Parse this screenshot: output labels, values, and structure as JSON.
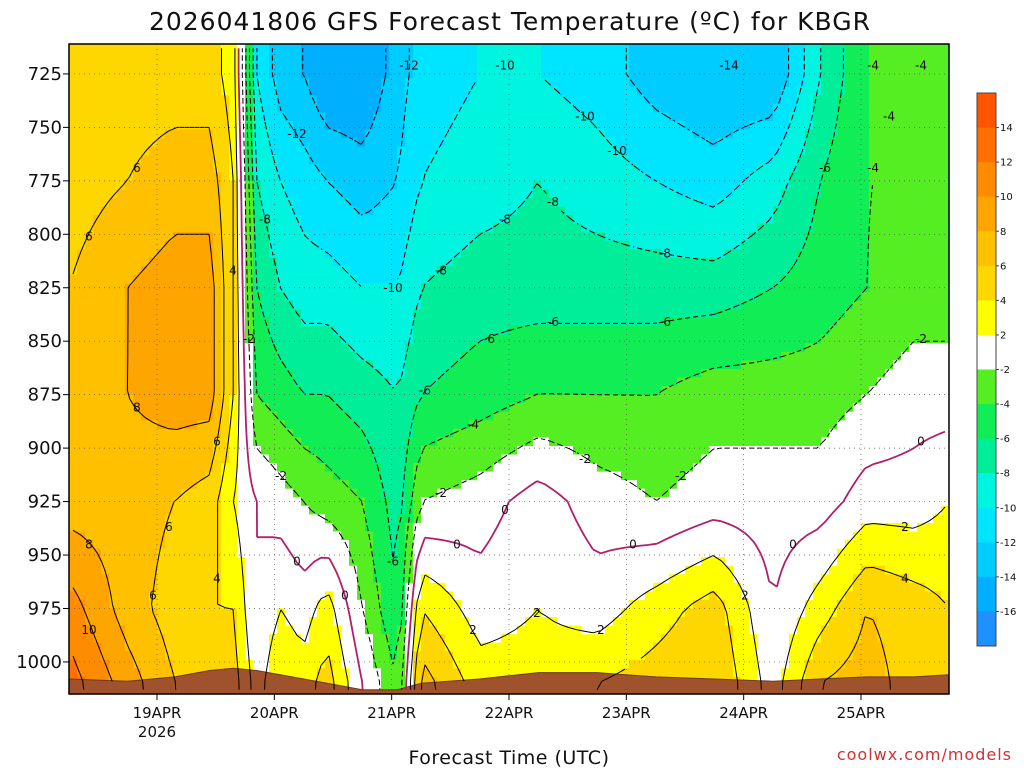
{
  "chart_data": {
    "type": "heatmap",
    "title": "2026041806 GFS Forecast Temperature (ºC) for KBGR",
    "xlabel": "Forecast Time (UTC)",
    "ylabel": "",
    "credit": "coolwx.com/models",
    "x_ticks": [
      "19APR",
      "20APR",
      "21APR",
      "22APR",
      "23APR",
      "24APR",
      "25APR"
    ],
    "x_tick_sublabel": "2026",
    "x_range": [
      "2026-04-18T06",
      "2026-04-25T18"
    ],
    "y_axis": "pressure (hPa), inverted",
    "y_ticks": [
      725,
      750,
      775,
      800,
      825,
      850,
      875,
      900,
      925,
      950,
      975,
      1000
    ],
    "y_range": [
      1015,
      711
    ],
    "colorbar": {
      "tick_labels": [
        "-16",
        "-14",
        "-12",
        "-10",
        "-8",
        "-6",
        "-4",
        "-2",
        "2",
        "4",
        "6",
        "8",
        "10",
        "12",
        "14"
      ],
      "bands": [
        {
          "min": -18,
          "max": -16,
          "color": "#1e90ff"
        },
        {
          "min": -16,
          "max": -14,
          "color": "#00b0ff"
        },
        {
          "min": -14,
          "max": -12,
          "color": "#00ccff"
        },
        {
          "min": -12,
          "max": -10,
          "color": "#00e5ff"
        },
        {
          "min": -10,
          "max": -8,
          "color": "#00f5e0"
        },
        {
          "min": -8,
          "max": -6,
          "color": "#00ee99"
        },
        {
          "min": -6,
          "max": -4,
          "color": "#11ee55"
        },
        {
          "min": -4,
          "max": -2,
          "color": "#55ee22"
        },
        {
          "min": -2,
          "max": 2,
          "color": "#ffffff"
        },
        {
          "min": 2,
          "max": 4,
          "color": "#ffff00"
        },
        {
          "min": 4,
          "max": 6,
          "color": "#ffd700"
        },
        {
          "min": 6,
          "max": 8,
          "color": "#ffc000"
        },
        {
          "min": 8,
          "max": 10,
          "color": "#ffa500"
        },
        {
          "min": 10,
          "max": 12,
          "color": "#ff8c00"
        },
        {
          "min": 12,
          "max": 14,
          "color": "#ff7000"
        },
        {
          "min": 14,
          "max": 16,
          "color": "#ff5500"
        }
      ]
    },
    "x_samples_day": [
      0,
      0.5,
      0.9,
      1.2,
      1.4,
      1.6,
      1.8,
      2.0,
      2.2,
      2.5,
      2.8,
      3.0,
      3.5,
      4.0,
      4.5,
      5.0,
      5.5,
      6.0,
      6.4,
      6.8,
      7.2,
      7.5
    ],
    "level_profiles": [
      {
        "p": 725,
        "temps": [
          4,
          5,
          5,
          5,
          3,
          -10,
          -13,
          -14,
          -16,
          -16,
          -13,
          -11,
          -10,
          -10,
          -11,
          -13,
          -14,
          -14,
          -8,
          -4,
          -4,
          -4
        ]
      },
      {
        "p": 775,
        "temps": [
          5,
          6,
          7,
          7,
          4,
          -8,
          -10,
          -11,
          -12,
          -13,
          -12,
          -10,
          -9,
          -8,
          -9,
          -10,
          -11,
          -9,
          -6,
          -4,
          -4,
          -3
        ]
      },
      {
        "p": 825,
        "temps": [
          6,
          8,
          9,
          9,
          4,
          -6,
          -8,
          -9,
          -9,
          -10,
          -10,
          -8,
          -7,
          -7,
          -7,
          -7,
          -7,
          -6,
          -5,
          -4,
          -3,
          -3
        ]
      },
      {
        "p": 875,
        "temps": [
          7,
          8,
          9,
          9,
          4,
          -4,
          -5,
          -6,
          -6,
          -7,
          -8,
          -6,
          -5,
          -4,
          -4,
          -4,
          -3,
          -3,
          -3,
          -2,
          -1,
          -1
        ]
      },
      {
        "p": 925,
        "temps": [
          7,
          7,
          6,
          5,
          2,
          0,
          -1,
          -2,
          -3,
          -4,
          -7,
          -2,
          -1,
          1,
          -1,
          -2,
          -1,
          -1,
          -1,
          1,
          1,
          2
        ]
      },
      {
        "p": 975,
        "temps": [
          11,
          7,
          5,
          4,
          4,
          0,
          2,
          1,
          3,
          -2,
          -6,
          4,
          1,
          2,
          1,
          3,
          5,
          0,
          3,
          6,
          5,
          4
        ]
      },
      {
        "p": 1010,
        "temps": [
          13,
          9,
          6,
          5,
          5,
          1,
          4,
          3,
          5,
          0,
          -4,
          7,
          3,
          3,
          4,
          5,
          6,
          1,
          6,
          7,
          5,
          5
        ]
      }
    ],
    "surface_pressure": [
      1008,
      1009,
      1007,
      1004,
      1003,
      1004,
      1006,
      1008,
      1010,
      1013,
      1013,
      1010,
      1008,
      1005,
      1005,
      1007,
      1008,
      1009,
      1008,
      1007,
      1007,
      1006
    ],
    "contour_labels": [
      "6",
      "4",
      "6",
      "10",
      "8",
      "8",
      "6",
      "6",
      "2",
      "0",
      "-14",
      "-12",
      "-10",
      "-10",
      "-8",
      "-8",
      "-8",
      "-10",
      "-12",
      "-8",
      "-10",
      "-6",
      "-4",
      "-6",
      "-4",
      "-6",
      "-8",
      "-6",
      "-6",
      "-4",
      "-4",
      "-2",
      "-6",
      "-4",
      "-2",
      "-2",
      "-2",
      "-2",
      "0",
      "0",
      "0",
      "0",
      "2",
      "2",
      "2",
      "4",
      "4",
      "2",
      "6",
      "0",
      "0",
      "-2"
    ],
    "grid": true,
    "legend": "right (colorbar)"
  }
}
